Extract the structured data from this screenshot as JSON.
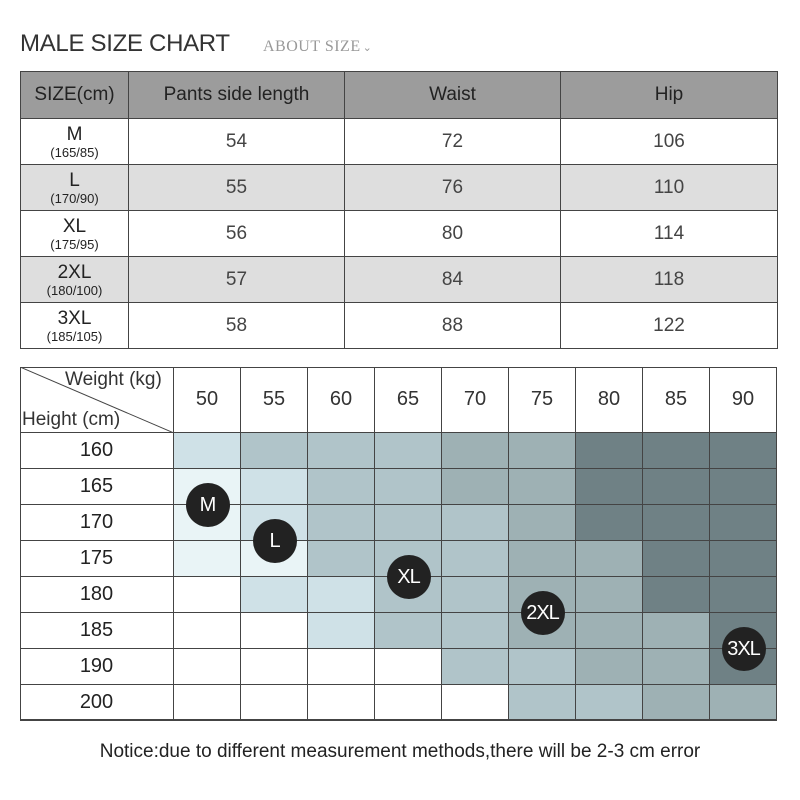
{
  "title": "MALE SIZE CHART",
  "subtitle": "ABOUT SIZE",
  "size_table": {
    "headers": [
      "SIZE(cm)",
      "Pants side length",
      "Waist",
      "Hip"
    ],
    "rows": [
      {
        "size": "M",
        "sub": "(165/85)",
        "pants": "54",
        "waist": "72",
        "hip": "106"
      },
      {
        "size": "L",
        "sub": "(170/90)",
        "pants": "55",
        "waist": "76",
        "hip": "110"
      },
      {
        "size": "XL",
        "sub": "(175/95)",
        "pants": "56",
        "waist": "80",
        "hip": "114"
      },
      {
        "size": "2XL",
        "sub": "(180/100)",
        "pants": "57",
        "waist": "84",
        "hip": "118"
      },
      {
        "size": "3XL",
        "sub": "(185/105)",
        "pants": "58",
        "waist": "88",
        "hip": "122"
      }
    ]
  },
  "weight_height_grid": {
    "weight_label": "Weight (kg)",
    "height_label": "Height (cm)",
    "weights": [
      "50",
      "55",
      "60",
      "65",
      "70",
      "75",
      "80",
      "85",
      "90"
    ],
    "heights": [
      "160",
      "165",
      "170",
      "175",
      "180",
      "185",
      "190",
      "200"
    ],
    "shade_colors": [
      "#ffffff",
      "#e9f4f6",
      "#cfe1e7",
      "#b0c4c9",
      "#9eb1b4",
      "#8a9a9d",
      "#6f8185"
    ],
    "shades": [
      [
        2,
        3,
        3,
        3,
        4,
        4,
        6,
        6,
        6
      ],
      [
        1,
        2,
        3,
        3,
        4,
        4,
        6,
        6,
        6
      ],
      [
        1,
        2,
        3,
        3,
        3,
        4,
        6,
        6,
        6
      ],
      [
        1,
        1,
        3,
        3,
        3,
        4,
        4,
        6,
        6
      ],
      [
        0,
        2,
        2,
        3,
        3,
        4,
        4,
        6,
        6
      ],
      [
        0,
        0,
        2,
        3,
        3,
        4,
        4,
        4,
        6
      ],
      [
        0,
        0,
        0,
        0,
        3,
        3,
        4,
        4,
        6
      ],
      [
        0,
        0,
        0,
        0,
        0,
        3,
        3,
        4,
        4
      ]
    ],
    "size_markers": [
      {
        "label": "M",
        "weight": "50",
        "height": "165"
      },
      {
        "label": "L",
        "weight": "55",
        "height": "170"
      },
      {
        "label": "XL",
        "weight": "65",
        "height": "175"
      },
      {
        "label": "2XL",
        "weight": "75",
        "height": "180"
      },
      {
        "label": "3XL",
        "weight": "90",
        "height": "185"
      }
    ]
  },
  "notice": "Notice:due to different measurement methods,there will be 2-3 cm error"
}
